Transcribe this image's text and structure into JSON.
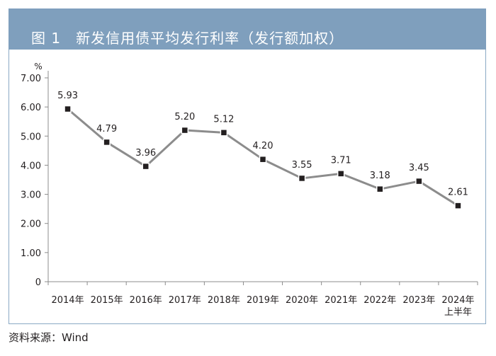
{
  "figure": {
    "title": "图 1　新发信用债平均发行利率（发行额加权）",
    "source": "资料来源：Wind"
  },
  "chart_data": {
    "type": "line",
    "title": "新发信用债平均发行利率（发行额加权）",
    "ylabel": "%",
    "xlabel": "",
    "categories": [
      "2014年",
      "2015年",
      "2016年",
      "2017年",
      "2018年",
      "2019年",
      "2020年",
      "2021年",
      "2022年",
      "2023年",
      "2024年\n上半年"
    ],
    "series": [
      {
        "values": [
          5.93,
          4.79,
          3.96,
          5.2,
          5.12,
          4.2,
          3.55,
          3.71,
          3.18,
          3.45,
          2.61
        ],
        "labels": [
          "5.93",
          "4.79",
          "3.96",
          "5.20",
          "5.12",
          "4.20",
          "3.55",
          "3.71",
          "3.18",
          "3.45",
          "2.61"
        ]
      }
    ],
    "ylim": [
      0,
      7
    ],
    "yticks": [
      0,
      1,
      2,
      3,
      4,
      5,
      6,
      7
    ],
    "ytick_labels": [
      "0",
      "1.00",
      "2.00",
      "3.00",
      "4.00",
      "5.00",
      "6.00",
      "7.00"
    ],
    "grid": false,
    "legend": "none",
    "colors": {
      "line": "#8c8c8c",
      "marker": "#231f20",
      "axis": "#8c8c8c",
      "title_bar": "#7f9fbd"
    }
  }
}
